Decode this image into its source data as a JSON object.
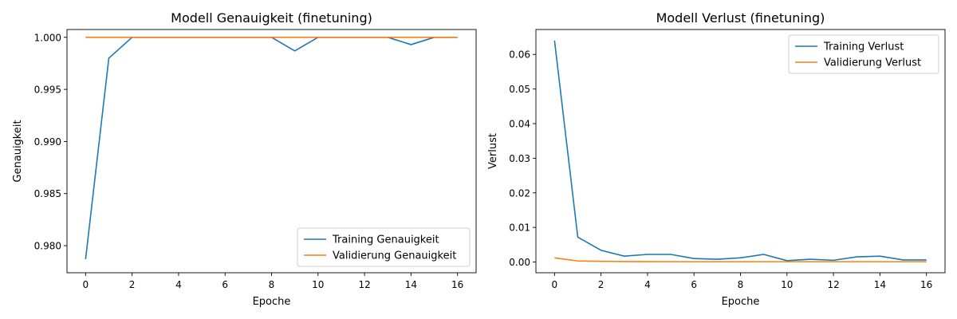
{
  "chart_data": [
    {
      "type": "line",
      "title": "Modell Genauigkeit (finetuning)",
      "xlabel": "Epoche",
      "ylabel": "Genauigkeit",
      "xlim": [
        -0.8,
        16.8
      ],
      "ylim": [
        0.9774,
        1.00075
      ],
      "xticks": [
        0,
        2,
        4,
        6,
        8,
        10,
        12,
        14,
        16
      ],
      "xtick_labels": [
        "0",
        "2",
        "4",
        "6",
        "8",
        "10",
        "12",
        "14",
        "16"
      ],
      "yticks": [
        0.98,
        0.985,
        0.99,
        0.995,
        1.0
      ],
      "ytick_labels": [
        "0.980",
        "0.985",
        "0.990",
        "0.995",
        "1.000"
      ],
      "grid": false,
      "legend_position": "lower-right",
      "x": [
        0,
        1,
        2,
        3,
        4,
        5,
        6,
        7,
        8,
        9,
        10,
        11,
        12,
        13,
        14,
        15,
        16
      ],
      "series": [
        {
          "name": "Training Genauigkeit",
          "color": "#1f77b4",
          "values": [
            0.9787,
            0.998,
            1.0,
            1.0,
            1.0,
            1.0,
            1.0,
            1.0,
            1.0,
            0.9987,
            1.0,
            1.0,
            1.0,
            1.0,
            0.9993,
            1.0,
            1.0
          ]
        },
        {
          "name": "Validierung Genauigkeit",
          "color": "#ff7f0e",
          "values": [
            1.0,
            1.0,
            1.0,
            1.0,
            1.0,
            1.0,
            1.0,
            1.0,
            1.0,
            1.0,
            1.0,
            1.0,
            1.0,
            1.0,
            1.0,
            1.0,
            1.0
          ]
        }
      ]
    },
    {
      "type": "line",
      "title": "Modell Verlust (finetuning)",
      "xlabel": "Epoche",
      "ylabel": "Verlust",
      "xlim": [
        -0.8,
        16.8
      ],
      "ylim": [
        -0.0031,
        0.0672
      ],
      "xticks": [
        0,
        2,
        4,
        6,
        8,
        10,
        12,
        14,
        16
      ],
      "xtick_labels": [
        "0",
        "2",
        "4",
        "6",
        "8",
        "10",
        "12",
        "14",
        "16"
      ],
      "yticks": [
        0.0,
        0.01,
        0.02,
        0.03,
        0.04,
        0.05,
        0.06
      ],
      "ytick_labels": [
        "0.00",
        "0.01",
        "0.02",
        "0.03",
        "0.04",
        "0.05",
        "0.06"
      ],
      "grid": false,
      "legend_position": "upper-right",
      "x": [
        0,
        1,
        2,
        3,
        4,
        5,
        6,
        7,
        8,
        9,
        10,
        11,
        12,
        13,
        14,
        15,
        16
      ],
      "series": [
        {
          "name": "Training Verlust",
          "color": "#1f77b4",
          "values": [
            0.064,
            0.0072,
            0.0034,
            0.0017,
            0.0022,
            0.0022,
            0.001,
            0.0008,
            0.0012,
            0.0022,
            0.0004,
            0.0008,
            0.0005,
            0.0015,
            0.0017,
            0.0006,
            0.0006
          ]
        },
        {
          "name": "Validierung Verlust",
          "color": "#ff7f0e",
          "values": [
            0.0012,
            0.0003,
            0.0002,
            0.00015,
            0.00012,
            0.0001,
            0.0001,
            0.0001,
            0.0001,
            0.0001,
            0.0001,
            0.0001,
            0.0001,
            0.0001,
            0.0001,
            0.0001,
            0.0001
          ]
        }
      ]
    }
  ]
}
